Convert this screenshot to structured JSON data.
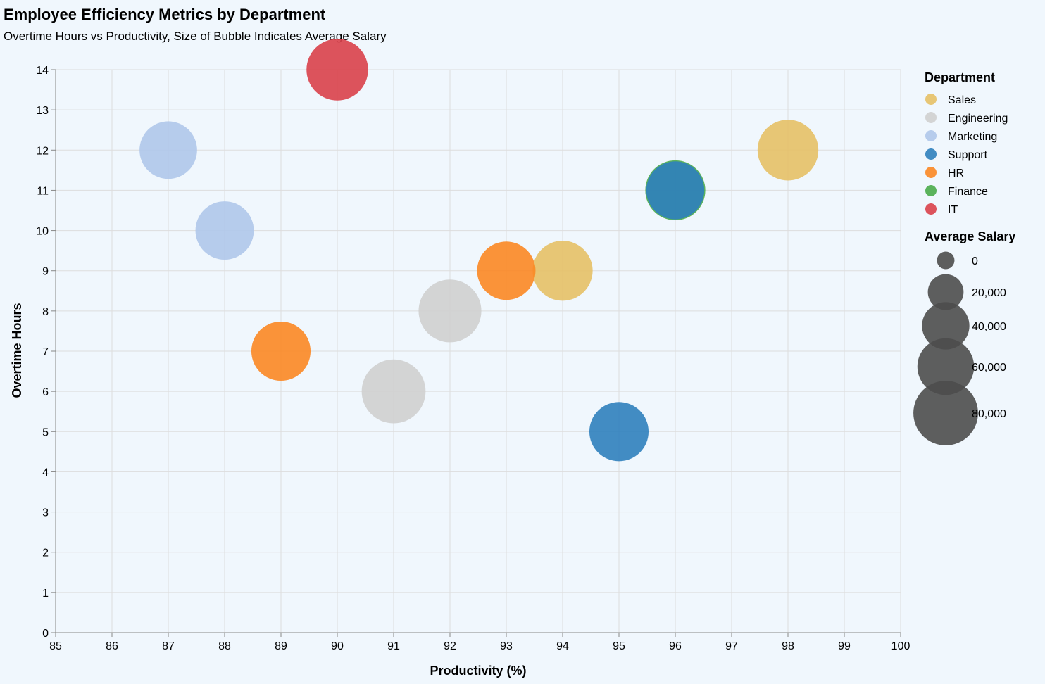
{
  "title": "Employee Efficiency Metrics by Department",
  "subtitle": "Overtime Hours vs Productivity, Size of Bubble Indicates Average Salary",
  "chart_data": {
    "type": "scatter",
    "title": "Employee Efficiency Metrics by Department",
    "subtitle": "Overtime Hours vs Productivity, Size of Bubble Indicates Average Salary",
    "xlabel": "Productivity (%)",
    "ylabel": "Overtime Hours",
    "xlim": [
      85,
      100
    ],
    "ylim": [
      0,
      14
    ],
    "x_ticks": [
      85,
      86,
      87,
      88,
      89,
      90,
      91,
      92,
      93,
      94,
      95,
      96,
      97,
      98,
      99,
      100
    ],
    "y_ticks": [
      0,
      1,
      2,
      3,
      4,
      5,
      6,
      7,
      8,
      9,
      10,
      11,
      12,
      13,
      14
    ],
    "grid": true,
    "size_encoding": "Average Salary",
    "legend": {
      "placement": "right",
      "color_title": "Department",
      "size_title": "Average Salary",
      "size_ticks": [
        0,
        20000,
        40000,
        60000,
        80000
      ],
      "size_tick_labels": [
        "0",
        "20,000",
        "40,000",
        "60,000",
        "80,000"
      ]
    },
    "series": [
      {
        "name": "Sales",
        "color": "#e6c066",
        "points": [
          {
            "x": 98,
            "y": 12,
            "salary": 70000
          },
          {
            "x": 94,
            "y": 9,
            "salary": 68000
          }
        ]
      },
      {
        "name": "Engineering",
        "color": "#cfcfcf",
        "points": [
          {
            "x": 92,
            "y": 8,
            "salary": 75000
          },
          {
            "x": 91,
            "y": 6,
            "salary": 78000
          }
        ]
      },
      {
        "name": "Marketing",
        "color": "#afc7ea",
        "points": [
          {
            "x": 87,
            "y": 12,
            "salary": 62000
          },
          {
            "x": 88,
            "y": 10,
            "salary": 64000
          }
        ]
      },
      {
        "name": "Support",
        "color": "#2f7fbd",
        "points": [
          {
            "x": 95,
            "y": 5,
            "salary": 66000
          },
          {
            "x": 96,
            "y": 11,
            "salary": 63000
          }
        ]
      },
      {
        "name": "HR",
        "color": "#fb8724",
        "points": [
          {
            "x": 93,
            "y": 9,
            "salary": 64000
          },
          {
            "x": 89,
            "y": 7,
            "salary": 66000
          }
        ]
      },
      {
        "name": "Finance",
        "color": "#4aab4a",
        "points": [
          {
            "x": 96,
            "y": 11,
            "salary": 68000
          }
        ]
      },
      {
        "name": "IT",
        "color": "#d9404a",
        "points": [
          {
            "x": 90,
            "y": 14,
            "salary": 72000
          }
        ]
      }
    ]
  }
}
